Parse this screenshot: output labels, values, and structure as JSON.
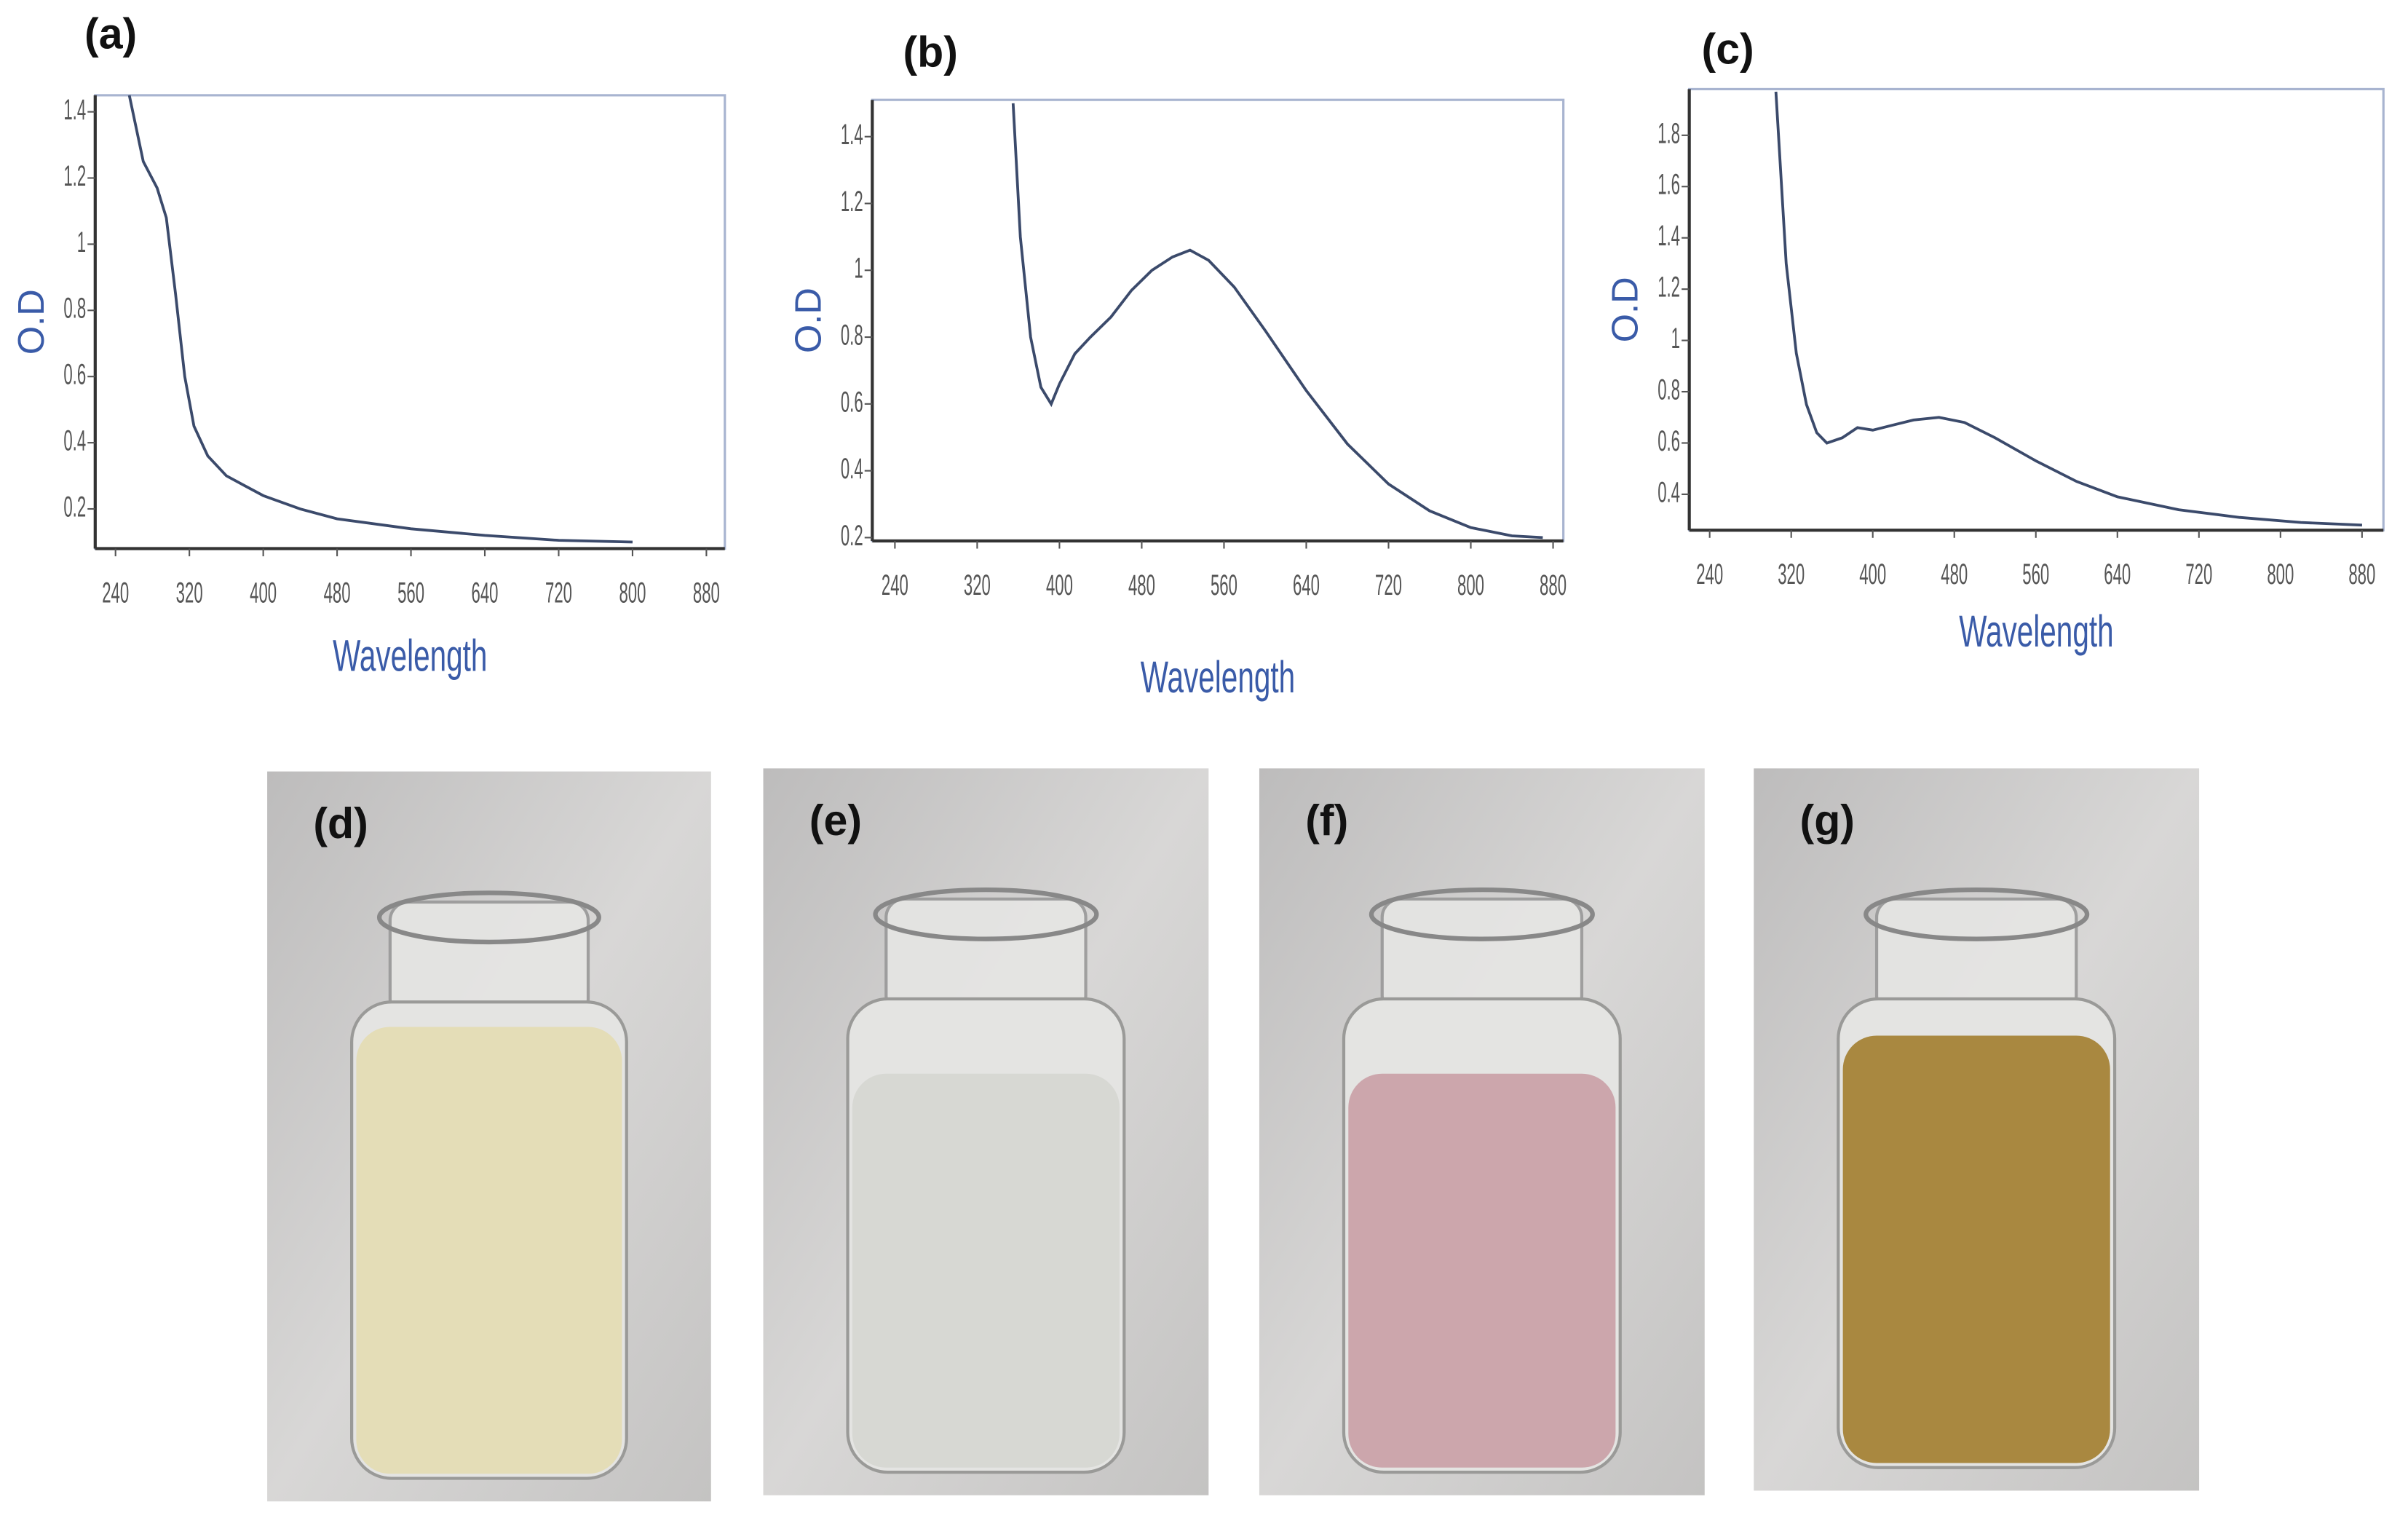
{
  "chart_data": [
    {
      "type": "line",
      "panel": "(a)",
      "ylabel": "O.D",
      "xlabel": "Wavelength",
      "color": "#3b4a6b",
      "x": [
        255,
        270,
        285,
        295,
        305,
        315,
        325,
        340,
        360,
        380,
        400,
        440,
        480,
        560,
        640,
        720,
        800
      ],
      "y": [
        1.45,
        1.25,
        1.17,
        1.08,
        0.85,
        0.6,
        0.45,
        0.36,
        0.3,
        0.27,
        0.24,
        0.2,
        0.17,
        0.14,
        0.12,
        0.105,
        0.1
      ],
      "xlim": [
        218,
        900
      ],
      "ylim": [
        0.08,
        1.45
      ],
      "xticks": [
        240,
        320,
        400,
        480,
        560,
        640,
        720,
        800,
        880
      ],
      "yticks": [
        0.2,
        0.4,
        0.6,
        0.8,
        1,
        1.2,
        1.4
      ]
    },
    {
      "type": "line",
      "panel": "(b)",
      "ylabel": "O.D",
      "xlabel": "Wavelength",
      "color": "#3b4a6b",
      "x": [
        355,
        362,
        372,
        382,
        392,
        400,
        415,
        430,
        450,
        470,
        490,
        510,
        527,
        545,
        570,
        600,
        640,
        680,
        720,
        760,
        800,
        840,
        870
      ],
      "y": [
        1.5,
        1.1,
        0.8,
        0.65,
        0.6,
        0.66,
        0.75,
        0.8,
        0.86,
        0.94,
        1.0,
        1.04,
        1.06,
        1.03,
        0.95,
        0.82,
        0.64,
        0.48,
        0.36,
        0.28,
        0.23,
        0.205,
        0.2
      ],
      "xlim": [
        218,
        890
      ],
      "ylim": [
        0.19,
        1.51
      ],
      "xticks": [
        240,
        320,
        400,
        480,
        560,
        640,
        720,
        800,
        880
      ],
      "yticks": [
        0.2,
        0.4,
        0.6,
        0.8,
        1,
        1.2,
        1.4
      ]
    },
    {
      "type": "line",
      "panel": "(c)",
      "ylabel": "O.D",
      "xlabel": "Wavelength",
      "color": "#3b4a6b",
      "x": [
        305,
        315,
        325,
        335,
        345,
        355,
        370,
        385,
        400,
        420,
        440,
        465,
        490,
        520,
        560,
        600,
        640,
        700,
        760,
        820,
        880
      ],
      "y": [
        1.97,
        1.3,
        0.95,
        0.75,
        0.64,
        0.6,
        0.62,
        0.66,
        0.65,
        0.67,
        0.69,
        0.7,
        0.68,
        0.62,
        0.53,
        0.45,
        0.39,
        0.34,
        0.31,
        0.29,
        0.28
      ],
      "xlim": [
        220,
        901
      ],
      "ylim": [
        0.26,
        1.98
      ],
      "xticks": [
        240,
        320,
        400,
        480,
        560,
        640,
        720,
        800,
        880
      ],
      "yticks": [
        0.4,
        0.6,
        0.8,
        1,
        1.2,
        1.4,
        1.6,
        1.8
      ]
    }
  ],
  "photos": [
    {
      "label": "(d)"
    },
    {
      "label": "(e)"
    },
    {
      "label": "(f)"
    },
    {
      "label": "(g)"
    }
  ]
}
